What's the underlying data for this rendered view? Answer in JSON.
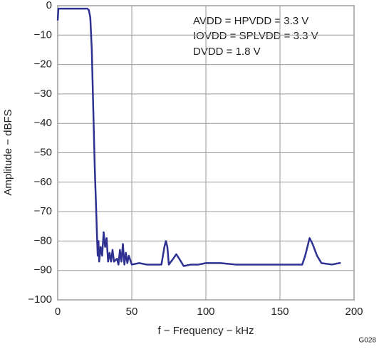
{
  "chart_data": {
    "type": "line",
    "xlabel": "f − Frequency − kHz",
    "ylabel": "Amplitude − dBFS",
    "annotations": [
      "AVDD = HPVDD = 3.3 V",
      "IOVDD = SPLVDD = 3.3 V",
      "DVDD = 1.8 V"
    ],
    "figure_id": "G028",
    "xlim": [
      0,
      200
    ],
    "xticks": [
      0,
      50,
      100,
      150,
      200
    ],
    "ylim": [
      -100,
      0
    ],
    "yticks": [
      0,
      {
        "value": -10,
        "label": "−10"
      },
      {
        "value": -20,
        "label": "−20"
      },
      {
        "value": -30,
        "label": "−30"
      },
      {
        "value": -40,
        "label": "−40"
      },
      {
        "value": -50,
        "label": "−50"
      },
      {
        "value": -60,
        "label": "−60"
      },
      {
        "value": -70,
        "label": "−70"
      },
      {
        "value": -80,
        "label": "−80"
      },
      {
        "value": -90,
        "label": "−90"
      },
      {
        "value": -100,
        "label": "−100"
      }
    ],
    "grid": true,
    "series": [
      {
        "color": "#2e3192",
        "x": [
          0,
          0.5,
          20,
          21,
          22,
          23,
          24,
          25,
          26,
          26.5,
          27,
          27.5,
          28,
          29,
          30,
          31,
          32,
          33,
          34,
          35,
          36,
          37,
          38,
          40,
          41,
          42,
          43,
          44,
          45,
          46,
          47,
          48,
          50,
          55,
          60,
          70,
          72,
          73,
          74,
          75,
          78,
          80,
          82,
          85,
          90,
          95,
          100,
          110,
          120,
          140,
          150,
          165,
          167,
          169,
          170,
          172,
          175,
          178,
          185,
          190,
          191
        ],
        "values": [
          -5,
          -1,
          -1,
          -1.5,
          -4,
          -15,
          -35,
          -55,
          -70,
          -78,
          -85,
          -80,
          -87,
          -82,
          -85,
          -77,
          -82,
          -79,
          -87,
          -84,
          -87,
          -83,
          -87,
          -86,
          -88,
          -83,
          -87,
          -81,
          -88,
          -84,
          -87.5,
          -85,
          -88,
          -87.5,
          -88,
          -88,
          -82,
          -80,
          -82,
          -88,
          -86,
          -84.5,
          -86,
          -88.5,
          -88,
          -88,
          -87.5,
          -87.5,
          -88,
          -88,
          -88,
          -88,
          -85,
          -81,
          -79,
          -81,
          -85,
          -87.5,
          -88,
          -87.5,
          -87.5
        ]
      }
    ]
  }
}
